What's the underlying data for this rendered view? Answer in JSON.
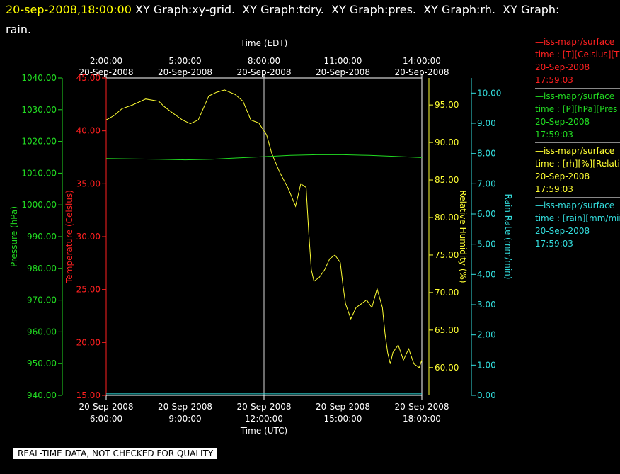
{
  "header": {
    "datetime": "20-sep-2008,18:00:00",
    "line1": " XY Graph:xy-grid.  XY Graph:tdry.  XY Graph:pres.  XY Graph:rh.  XY Graph:",
    "line2": "rain."
  },
  "footer": {
    "text": "REAL-TIME DATA, NOT CHECKED FOR QUALITY"
  },
  "legend": [
    {
      "color": "#ff2020",
      "name": "—iss-mapr/surface",
      "var": "time : [T][Celsius][T",
      "date": "20-Sep-2008",
      "time": "17:59:03"
    },
    {
      "color": "#22dd22",
      "name": "—iss-mapr/surface",
      "var": "time : [P][hPa][Pres",
      "date": "20-Sep-2008",
      "time": "17:59:03"
    },
    {
      "color": "#ffff33",
      "name": "—iss-mapr/surface",
      "var": "time : [rh][%][Relati",
      "date": "20-Sep-2008",
      "time": "17:59:03"
    },
    {
      "color": "#33dddd",
      "name": "—iss-mapr/surface",
      "var": "time : [rain][mm/min",
      "date": "20-Sep-2008",
      "time": "17:59:03"
    }
  ],
  "chart_data": {
    "type": "line",
    "x_bottom": {
      "label": "Time (UTC)",
      "range": [
        6,
        18
      ],
      "ticks": [
        {
          "date": "20-Sep-2008",
          "time": "6:00:00"
        },
        {
          "date": "20-Sep-2008",
          "time": "9:00:00"
        },
        {
          "date": "20-Sep-2008",
          "time": "12:00:00"
        },
        {
          "date": "20-Sep-2008",
          "time": "15:00:00"
        },
        {
          "date": "20-Sep-2008",
          "time": "18:00:00"
        }
      ]
    },
    "x_top": {
      "label": "Time (EDT)",
      "ticks": [
        {
          "date": "20-Sep-2008",
          "time": "2:00:00"
        },
        {
          "date": "20-Sep-2008",
          "time": "5:00:00"
        },
        {
          "date": "20-Sep-2008",
          "time": "8:00:00"
        },
        {
          "date": "20-Sep-2008",
          "time": "11:00:00"
        },
        {
          "date": "20-Sep-2008",
          "time": "14:00:00"
        }
      ]
    },
    "y_pressure": {
      "label": "Pressure (hPa)",
      "color": "#22dd22",
      "range": [
        940,
        1040
      ],
      "ticks": [
        "1040.00",
        "1030.00",
        "1020.00",
        "1010.00",
        "1000.00",
        "990.00",
        "980.00",
        "970.00",
        "960.00",
        "950.00",
        "940.00"
      ]
    },
    "y_temperature": {
      "label": "Temperature (Celsius)",
      "color": "#ff2020",
      "range": [
        15,
        45
      ],
      "ticks": [
        "45.00",
        "40.00",
        "35.00",
        "30.00",
        "25.00",
        "20.00",
        "15.00"
      ]
    },
    "y_humidity": {
      "label": "Relative Humidity (%)",
      "color": "#ffff33",
      "range": [
        56.3,
        98.6
      ],
      "ticks": [
        "95.00",
        "90.00",
        "85.00",
        "80.00",
        "75.00",
        "70.00",
        "65.00",
        "60.00"
      ]
    },
    "y_rain": {
      "label": "Rain Rate (mm/min)",
      "color": "#33dddd",
      "range": [
        0,
        10.5
      ],
      "ticks": [
        "10.00",
        "9.00",
        "8.00",
        "7.00",
        "6.00",
        "5.00",
        "4.00",
        "3.00",
        "2.00",
        "1.00",
        "0.00"
      ]
    },
    "series": [
      {
        "name": "rh",
        "axis": "y_humidity",
        "color": "#ffff33",
        "x": [
          6.0,
          6.3,
          6.6,
          7.0,
          7.5,
          8.0,
          8.2,
          8.5,
          8.9,
          9.2,
          9.5,
          9.9,
          10.2,
          10.5,
          10.9,
          11.2,
          11.5,
          11.8,
          12.1,
          12.3,
          12.6,
          12.9,
          13.0,
          13.2,
          13.4,
          13.6,
          13.7,
          13.8,
          13.9,
          14.1,
          14.3,
          14.5,
          14.7,
          14.9,
          15.0,
          15.1,
          15.3,
          15.5,
          15.7,
          15.9,
          16.1,
          16.3,
          16.5,
          16.6,
          16.7,
          16.8,
          16.9,
          17.1,
          17.3,
          17.5,
          17.7,
          17.9,
          18.0
        ],
        "y": [
          93.0,
          93.6,
          94.5,
          95.0,
          95.8,
          95.5,
          94.8,
          94.0,
          93.0,
          92.5,
          93.0,
          96.2,
          96.7,
          97.0,
          96.4,
          95.5,
          93.0,
          92.6,
          91.0,
          88.5,
          86.0,
          84.0,
          83.2,
          81.5,
          84.5,
          84.0,
          78.0,
          73.0,
          71.5,
          72.0,
          73.0,
          74.5,
          75.0,
          74.0,
          71.0,
          68.5,
          66.5,
          68.0,
          68.5,
          69.0,
          68.0,
          70.5,
          68.0,
          64.5,
          62.0,
          60.5,
          62.0,
          63.0,
          61.0,
          62.5,
          60.5,
          60.0,
          61.0
        ]
      },
      {
        "name": "P",
        "axis": "y_pressure",
        "color": "#22dd22",
        "x": [
          6.0,
          7.0,
          8.0,
          9.0,
          10.0,
          11.0,
          12.0,
          13.0,
          14.0,
          15.0,
          16.0,
          17.0,
          18.0
        ],
        "y": [
          1014.6,
          1014.5,
          1014.4,
          1014.2,
          1014.4,
          1014.8,
          1015.2,
          1015.6,
          1015.8,
          1015.8,
          1015.6,
          1015.3,
          1014.9
        ]
      },
      {
        "name": "rain",
        "axis": "y_rain",
        "color": "#33dddd",
        "x": [
          6.0,
          18.0
        ],
        "y": [
          0.05,
          0.05
        ]
      }
    ]
  }
}
